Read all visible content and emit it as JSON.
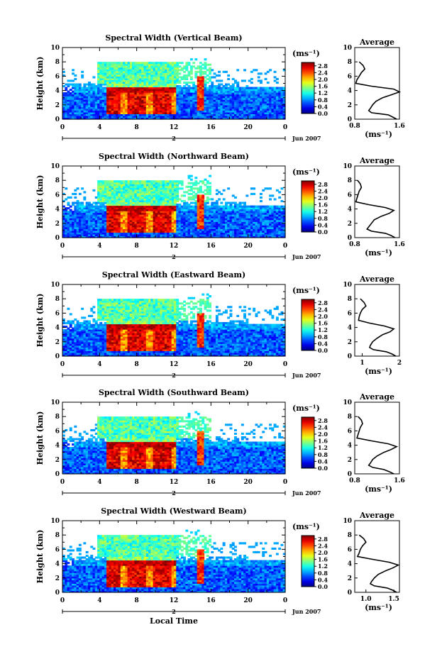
{
  "figure": {
    "xlabel": "Local Time",
    "date_label": "Jun 2007",
    "day_label": "2",
    "colorbar_unit": "(ms⁻¹)",
    "avg_title": "Average",
    "avg_xlabel": "(ms⁻¹)"
  },
  "chart_data": [
    {
      "type": "heatmap",
      "title": "Spectral Width (Vertical Beam)",
      "ylabel": "Height (km)",
      "xlim": [
        0,
        24
      ],
      "ylim": [
        0,
        10
      ],
      "xticks": [
        "0",
        "4",
        "8",
        "12",
        "16",
        "20",
        "0"
      ],
      "yticks": [
        "0",
        "2",
        "4",
        "6",
        "8",
        "10"
      ],
      "colorbar_ticks": [
        "0.0",
        "0.4",
        "0.8",
        "1.2",
        "1.6",
        "2.0",
        "2.4",
        "2.8"
      ],
      "colorbar_range": [
        0,
        3.0
      ],
      "avg_profile": {
        "xlim": [
          0.8,
          1.6
        ],
        "xticks": [
          "0.8",
          "1.6"
        ],
        "yticks": [
          "0",
          "2",
          "4",
          "6",
          "8",
          "10"
        ],
        "height_km": [
          0.0,
          0.3,
          0.6,
          0.9,
          1.2,
          1.5,
          2.0,
          2.5,
          3.0,
          3.4,
          3.8,
          4.2,
          4.6,
          5.0,
          5.5,
          6.0,
          6.5,
          7.0,
          7.5,
          8.0
        ],
        "width_ms": [
          1.55,
          1.48,
          1.4,
          1.1,
          1.05,
          1.08,
          1.12,
          1.18,
          1.3,
          1.45,
          1.6,
          1.5,
          1.1,
          0.82,
          0.84,
          0.88,
          0.92,
          0.98,
          0.95,
          0.88
        ]
      }
    },
    {
      "type": "heatmap",
      "title": "Spectral Width (Northward Beam)",
      "ylabel": "Height (km)",
      "xlim": [
        0,
        24
      ],
      "ylim": [
        0,
        10
      ],
      "xticks": [
        "0",
        "4",
        "8",
        "12",
        "16",
        "20",
        "0"
      ],
      "yticks": [
        "0",
        "2",
        "4",
        "6",
        "8",
        "10"
      ],
      "colorbar_ticks": [
        "0.0",
        "0.4",
        "0.8",
        "1.2",
        "1.6",
        "2.0",
        "2.4",
        "2.8"
      ],
      "colorbar_range": [
        0,
        3.0
      ],
      "avg_profile": {
        "xlim": [
          0.8,
          1.6
        ],
        "xticks": [
          "0.8",
          "1.6"
        ],
        "yticks": [
          "0",
          "2",
          "4",
          "6",
          "8",
          "10"
        ],
        "height_km": [
          0.0,
          0.3,
          0.6,
          0.9,
          1.2,
          1.5,
          2.0,
          2.5,
          3.0,
          3.4,
          3.8,
          4.2,
          4.6,
          5.0,
          5.5,
          6.0,
          6.5,
          7.0,
          7.5,
          8.0
        ],
        "width_ms": [
          1.52,
          1.45,
          1.35,
          1.1,
          1.02,
          1.05,
          1.1,
          1.15,
          1.28,
          1.42,
          1.5,
          1.35,
          1.05,
          0.82,
          0.84,
          0.86,
          0.88,
          0.92,
          0.9,
          0.85
        ]
      }
    },
    {
      "type": "heatmap",
      "title": "Spectral Width (Eastward Beam)",
      "ylabel": "Height (km)",
      "xlim": [
        0,
        24
      ],
      "ylim": [
        0,
        10
      ],
      "xticks": [
        "0",
        "4",
        "8",
        "12",
        "16",
        "20",
        "0"
      ],
      "yticks": [
        "0",
        "2",
        "4",
        "6",
        "8",
        "10"
      ],
      "colorbar_ticks": [
        "0.0",
        "0.4",
        "0.8",
        "1.2",
        "1.6",
        "2.0",
        "2.4",
        "2.8"
      ],
      "colorbar_range": [
        0,
        3.0
      ],
      "avg_profile": {
        "xlim": [
          0.8,
          2.0
        ],
        "xticks": [
          "1",
          "2"
        ],
        "yticks": [
          "0",
          "2",
          "4",
          "6",
          "8",
          "10"
        ],
        "height_km": [
          0.0,
          0.3,
          0.6,
          0.9,
          1.2,
          1.5,
          2.0,
          2.5,
          3.0,
          3.4,
          3.8,
          4.2,
          4.6,
          5.0,
          5.5,
          6.0,
          6.5,
          7.0,
          7.5,
          8.0
        ],
        "width_ms": [
          1.9,
          1.8,
          1.65,
          1.3,
          1.2,
          1.22,
          1.28,
          1.4,
          1.55,
          1.75,
          1.85,
          1.6,
          1.2,
          0.9,
          0.92,
          0.95,
          1.0,
          1.1,
          1.05,
          0.95
        ]
      }
    },
    {
      "type": "heatmap",
      "title": "Spectral Width (Southward Beam)",
      "ylabel": "Height (km)",
      "xlim": [
        0,
        24
      ],
      "ylim": [
        0,
        10
      ],
      "xticks": [
        "0",
        "4",
        "8",
        "12",
        "16",
        "20",
        "0"
      ],
      "yticks": [
        "0",
        "2",
        "4",
        "6",
        "8",
        "10"
      ],
      "colorbar_ticks": [
        "0.0",
        "0.4",
        "0.8",
        "1.2",
        "1.6",
        "2.0",
        "2.4",
        "2.8"
      ],
      "colorbar_range": [
        0,
        3.0
      ],
      "avg_profile": {
        "xlim": [
          0.8,
          1.6
        ],
        "xticks": [
          "0.8",
          "1.6"
        ],
        "yticks": [
          "0",
          "2",
          "4",
          "6",
          "8",
          "10"
        ],
        "height_km": [
          0.0,
          0.3,
          0.6,
          0.9,
          1.2,
          1.5,
          2.0,
          2.5,
          3.0,
          3.4,
          3.8,
          4.2,
          4.6,
          5.0,
          5.5,
          6.0,
          6.5,
          7.0,
          7.5,
          8.0
        ],
        "width_ms": [
          1.5,
          1.42,
          1.32,
          1.12,
          1.05,
          1.08,
          1.12,
          1.2,
          1.32,
          1.45,
          1.55,
          1.4,
          1.1,
          0.84,
          0.86,
          0.88,
          0.9,
          0.94,
          0.92,
          0.86
        ]
      }
    },
    {
      "type": "heatmap",
      "title": "Spectral Width (Westward Beam)",
      "ylabel": "Height (km)",
      "xlim": [
        0,
        24
      ],
      "ylim": [
        0,
        10
      ],
      "xticks": [
        "0",
        "4",
        "8",
        "12",
        "16",
        "20",
        "0"
      ],
      "yticks": [
        "0",
        "2",
        "4",
        "6",
        "8",
        "10"
      ],
      "colorbar_ticks": [
        "0.0",
        "0.4",
        "0.8",
        "1.2",
        "1.6",
        "2.0",
        "2.4",
        "2.8"
      ],
      "colorbar_range": [
        0,
        3.0
      ],
      "avg_profile": {
        "xlim": [
          0.8,
          1.6
        ],
        "xticks": [
          "1.0",
          "1.5"
        ],
        "yticks": [
          "0",
          "2",
          "4",
          "6",
          "8",
          "10"
        ],
        "height_km": [
          0.0,
          0.3,
          0.6,
          0.9,
          1.2,
          1.5,
          2.0,
          2.5,
          3.0,
          3.4,
          3.8,
          4.2,
          4.6,
          5.0,
          5.5,
          6.0,
          6.5,
          7.0,
          7.5,
          8.0
        ],
        "width_ms": [
          1.55,
          1.48,
          1.38,
          1.15,
          1.08,
          1.1,
          1.15,
          1.22,
          1.35,
          1.48,
          1.58,
          1.42,
          1.12,
          0.85,
          0.88,
          0.9,
          0.94,
          1.0,
          0.96,
          0.88
        ]
      }
    }
  ]
}
